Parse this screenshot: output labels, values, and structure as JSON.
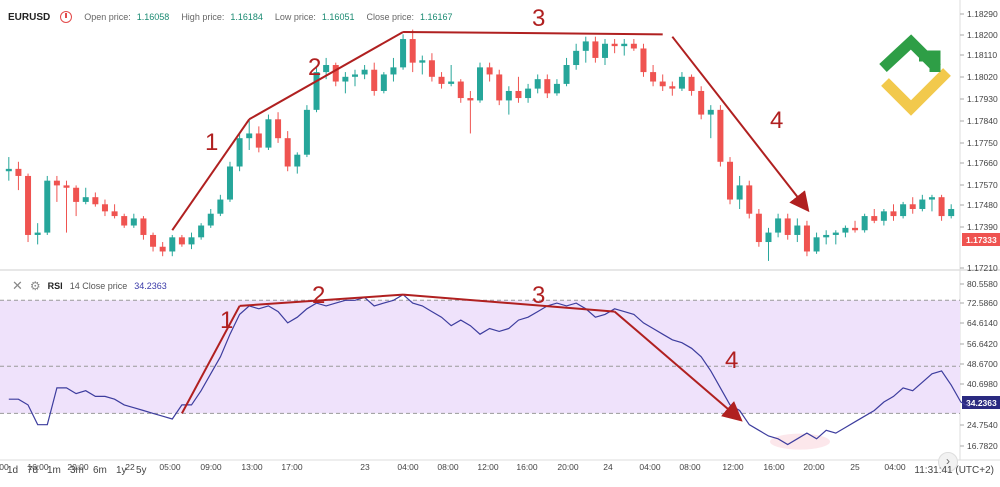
{
  "legend": {
    "symbol": "EURUSD",
    "open_label": "Open price:",
    "open_value": "1.16058",
    "high_label": "High price:",
    "high_value": "1.16184",
    "low_label": "Low price:",
    "low_value": "1.16051",
    "close_label": "Close price:",
    "close_value": "1.16167"
  },
  "rsi_legend": {
    "name": "RSI",
    "params": "14 Close price",
    "value": "34.2363",
    "close_icon": "close-icon",
    "settings_icon": "gear-icon"
  },
  "colors": {
    "up": "#26a69a",
    "down": "#ef5350",
    "rsi_line": "#3d3d9e",
    "band": "#efe2fb",
    "annotation": "#b02020",
    "price_badge": "#ef5350",
    "rsi_badge": "#2a2a80"
  },
  "price_axis": [
    "1.18290",
    "1.18200",
    "1.18110",
    "1.18020",
    "1.17930",
    "1.17840",
    "1.17750",
    "1.17660",
    "1.17570",
    "1.17480",
    "1.17390",
    "1.17210"
  ],
  "last_price_badge": "1.17333",
  "rsi_axis": [
    "80.5580",
    "72.5860",
    "64.6140",
    "56.6420",
    "48.6700",
    "40.6980",
    "24.7540",
    "16.7820"
  ],
  "rsi_badge": "34.2363",
  "time_axis": [
    "00",
    "16:00",
    "20:00",
    "22",
    "05:00",
    "09:00",
    "13:00",
    "17:00",
    "23",
    "04:00",
    "08:00",
    "12:00",
    "16:00",
    "20:00",
    "24",
    "04:00",
    "08:00",
    "12:00",
    "16:00",
    "20:00",
    "25",
    "04:00"
  ],
  "timeframes": [
    "1d",
    "7d",
    "1m",
    "3m",
    "6m",
    "1y",
    "5y"
  ],
  "clock": "11:31:41 (UTC+2)",
  "annotations_price": [
    "1",
    "2",
    "3",
    "4"
  ],
  "annotations_rsi": [
    "1",
    "2",
    "3",
    "4"
  ],
  "chart_data": [
    {
      "type": "candlestick",
      "title": "EURUSD",
      "ylim": [
        1.1721,
        1.1832
      ],
      "candles": [
        {
          "o": 1.1762,
          "h": 1.1768,
          "l": 1.1758,
          "c": 1.1763
        },
        {
          "o": 1.1763,
          "h": 1.1766,
          "l": 1.1754,
          "c": 1.176
        },
        {
          "o": 1.176,
          "h": 1.1761,
          "l": 1.1732,
          "c": 1.1735
        },
        {
          "o": 1.1735,
          "h": 1.174,
          "l": 1.1731,
          "c": 1.1736
        },
        {
          "o": 1.1736,
          "h": 1.176,
          "l": 1.1735,
          "c": 1.1758
        },
        {
          "o": 1.1758,
          "h": 1.176,
          "l": 1.1749,
          "c": 1.1756
        },
        {
          "o": 1.1756,
          "h": 1.1758,
          "l": 1.1736,
          "c": 1.1755
        },
        {
          "o": 1.1755,
          "h": 1.1756,
          "l": 1.1743,
          "c": 1.1749
        },
        {
          "o": 1.1749,
          "h": 1.1755,
          "l": 1.1748,
          "c": 1.1751
        },
        {
          "o": 1.1751,
          "h": 1.1753,
          "l": 1.1747,
          "c": 1.1748
        },
        {
          "o": 1.1748,
          "h": 1.175,
          "l": 1.1743,
          "c": 1.1745
        },
        {
          "o": 1.1745,
          "h": 1.1748,
          "l": 1.1742,
          "c": 1.1743
        },
        {
          "o": 1.1743,
          "h": 1.1744,
          "l": 1.1738,
          "c": 1.1739
        },
        {
          "o": 1.1739,
          "h": 1.1744,
          "l": 1.1738,
          "c": 1.1742
        },
        {
          "o": 1.1742,
          "h": 1.1743,
          "l": 1.1733,
          "c": 1.1735
        },
        {
          "o": 1.1735,
          "h": 1.1736,
          "l": 1.1728,
          "c": 1.173
        },
        {
          "o": 1.173,
          "h": 1.1732,
          "l": 1.1726,
          "c": 1.1728
        },
        {
          "o": 1.1728,
          "h": 1.1735,
          "l": 1.1726,
          "c": 1.1734
        },
        {
          "o": 1.1734,
          "h": 1.1735,
          "l": 1.173,
          "c": 1.1731
        },
        {
          "o": 1.1731,
          "h": 1.1736,
          "l": 1.1729,
          "c": 1.1734
        },
        {
          "o": 1.1734,
          "h": 1.174,
          "l": 1.1733,
          "c": 1.1739
        },
        {
          "o": 1.1739,
          "h": 1.1746,
          "l": 1.1738,
          "c": 1.1744
        },
        {
          "o": 1.1744,
          "h": 1.1752,
          "l": 1.1743,
          "c": 1.175
        },
        {
          "o": 1.175,
          "h": 1.1766,
          "l": 1.1749,
          "c": 1.1764
        },
        {
          "o": 1.1764,
          "h": 1.1778,
          "l": 1.1762,
          "c": 1.1776
        },
        {
          "o": 1.1776,
          "h": 1.1784,
          "l": 1.1771,
          "c": 1.1778
        },
        {
          "o": 1.1778,
          "h": 1.1781,
          "l": 1.177,
          "c": 1.1772
        },
        {
          "o": 1.1772,
          "h": 1.1786,
          "l": 1.1771,
          "c": 1.1784
        },
        {
          "o": 1.1784,
          "h": 1.1787,
          "l": 1.1774,
          "c": 1.1776
        },
        {
          "o": 1.1776,
          "h": 1.1779,
          "l": 1.1762,
          "c": 1.1764
        },
        {
          "o": 1.1764,
          "h": 1.177,
          "l": 1.1761,
          "c": 1.1769
        },
        {
          "o": 1.1769,
          "h": 1.179,
          "l": 1.1768,
          "c": 1.1788
        },
        {
          "o": 1.1788,
          "h": 1.1806,
          "l": 1.1787,
          "c": 1.1804
        },
        {
          "o": 1.1804,
          "h": 1.181,
          "l": 1.1801,
          "c": 1.1807
        },
        {
          "o": 1.1807,
          "h": 1.1808,
          "l": 1.1798,
          "c": 1.18
        },
        {
          "o": 1.18,
          "h": 1.1804,
          "l": 1.1795,
          "c": 1.1802
        },
        {
          "o": 1.1802,
          "h": 1.1805,
          "l": 1.1798,
          "c": 1.1803
        },
        {
          "o": 1.1803,
          "h": 1.1807,
          "l": 1.1801,
          "c": 1.1805
        },
        {
          "o": 1.1805,
          "h": 1.1808,
          "l": 1.1794,
          "c": 1.1796
        },
        {
          "o": 1.1796,
          "h": 1.1804,
          "l": 1.1795,
          "c": 1.1803
        },
        {
          "o": 1.1803,
          "h": 1.181,
          "l": 1.18,
          "c": 1.1806
        },
        {
          "o": 1.1806,
          "h": 1.182,
          "l": 1.1805,
          "c": 1.1818
        },
        {
          "o": 1.1818,
          "h": 1.1822,
          "l": 1.1804,
          "c": 1.1808
        },
        {
          "o": 1.1808,
          "h": 1.1811,
          "l": 1.1803,
          "c": 1.1809
        },
        {
          "o": 1.1809,
          "h": 1.1812,
          "l": 1.18,
          "c": 1.1802
        },
        {
          "o": 1.1802,
          "h": 1.1804,
          "l": 1.1797,
          "c": 1.1799
        },
        {
          "o": 1.1799,
          "h": 1.1807,
          "l": 1.1798,
          "c": 1.18
        },
        {
          "o": 1.18,
          "h": 1.1801,
          "l": 1.1791,
          "c": 1.1793
        },
        {
          "o": 1.1793,
          "h": 1.1796,
          "l": 1.1778,
          "c": 1.1792
        },
        {
          "o": 1.1792,
          "h": 1.1808,
          "l": 1.1791,
          "c": 1.1806
        },
        {
          "o": 1.1806,
          "h": 1.1808,
          "l": 1.18,
          "c": 1.1803
        },
        {
          "o": 1.1803,
          "h": 1.1805,
          "l": 1.179,
          "c": 1.1792
        },
        {
          "o": 1.1792,
          "h": 1.1798,
          "l": 1.1786,
          "c": 1.1796
        },
        {
          "o": 1.1796,
          "h": 1.1802,
          "l": 1.1791,
          "c": 1.1793
        },
        {
          "o": 1.1793,
          "h": 1.1799,
          "l": 1.1791,
          "c": 1.1797
        },
        {
          "o": 1.1797,
          "h": 1.1803,
          "l": 1.1795,
          "c": 1.1801
        },
        {
          "o": 1.1801,
          "h": 1.1803,
          "l": 1.1793,
          "c": 1.1795
        },
        {
          "o": 1.1795,
          "h": 1.1801,
          "l": 1.1794,
          "c": 1.1799
        },
        {
          "o": 1.1799,
          "h": 1.181,
          "l": 1.1798,
          "c": 1.1807
        },
        {
          "o": 1.1807,
          "h": 1.1816,
          "l": 1.1805,
          "c": 1.1813
        },
        {
          "o": 1.1813,
          "h": 1.1819,
          "l": 1.1808,
          "c": 1.1817
        },
        {
          "o": 1.1817,
          "h": 1.1819,
          "l": 1.1808,
          "c": 1.181
        },
        {
          "o": 1.181,
          "h": 1.1818,
          "l": 1.1807,
          "c": 1.1816
        },
        {
          "o": 1.1816,
          "h": 1.1818,
          "l": 1.1812,
          "c": 1.1815
        },
        {
          "o": 1.1815,
          "h": 1.1818,
          "l": 1.1811,
          "c": 1.1816
        },
        {
          "o": 1.1816,
          "h": 1.1818,
          "l": 1.1813,
          "c": 1.1814
        },
        {
          "o": 1.1814,
          "h": 1.1816,
          "l": 1.1802,
          "c": 1.1804
        },
        {
          "o": 1.1804,
          "h": 1.1807,
          "l": 1.1798,
          "c": 1.18
        },
        {
          "o": 1.18,
          "h": 1.1803,
          "l": 1.1796,
          "c": 1.1798
        },
        {
          "o": 1.1798,
          "h": 1.18,
          "l": 1.1794,
          "c": 1.1797
        },
        {
          "o": 1.1797,
          "h": 1.1804,
          "l": 1.1796,
          "c": 1.1802
        },
        {
          "o": 1.1802,
          "h": 1.1803,
          "l": 1.1794,
          "c": 1.1796
        },
        {
          "o": 1.1796,
          "h": 1.1798,
          "l": 1.1784,
          "c": 1.1786
        },
        {
          "o": 1.1786,
          "h": 1.179,
          "l": 1.1776,
          "c": 1.1788
        },
        {
          "o": 1.1788,
          "h": 1.179,
          "l": 1.1764,
          "c": 1.1766
        },
        {
          "o": 1.1766,
          "h": 1.1768,
          "l": 1.1748,
          "c": 1.175
        },
        {
          "o": 1.175,
          "h": 1.176,
          "l": 1.1746,
          "c": 1.1756
        },
        {
          "o": 1.1756,
          "h": 1.1758,
          "l": 1.1742,
          "c": 1.1744
        },
        {
          "o": 1.1744,
          "h": 1.1746,
          "l": 1.173,
          "c": 1.1732
        },
        {
          "o": 1.1732,
          "h": 1.1738,
          "l": 1.1724,
          "c": 1.1736
        },
        {
          "o": 1.1736,
          "h": 1.1744,
          "l": 1.1734,
          "c": 1.1742
        },
        {
          "o": 1.1742,
          "h": 1.1744,
          "l": 1.1733,
          "c": 1.1735
        },
        {
          "o": 1.1735,
          "h": 1.1742,
          "l": 1.1732,
          "c": 1.1739
        },
        {
          "o": 1.1739,
          "h": 1.1741,
          "l": 1.1726,
          "c": 1.1728
        },
        {
          "o": 1.1728,
          "h": 1.1736,
          "l": 1.1727,
          "c": 1.1734
        },
        {
          "o": 1.1734,
          "h": 1.1737,
          "l": 1.1731,
          "c": 1.1735
        },
        {
          "o": 1.1735,
          "h": 1.1737,
          "l": 1.1731,
          "c": 1.1736
        },
        {
          "o": 1.1736,
          "h": 1.1739,
          "l": 1.1734,
          "c": 1.1738
        },
        {
          "o": 1.1738,
          "h": 1.1741,
          "l": 1.1736,
          "c": 1.1737
        },
        {
          "o": 1.1737,
          "h": 1.1744,
          "l": 1.1736,
          "c": 1.1743
        },
        {
          "o": 1.1743,
          "h": 1.1746,
          "l": 1.174,
          "c": 1.1741
        },
        {
          "o": 1.1741,
          "h": 1.1746,
          "l": 1.1739,
          "c": 1.1745
        },
        {
          "o": 1.1745,
          "h": 1.1748,
          "l": 1.1741,
          "c": 1.1743
        },
        {
          "o": 1.1743,
          "h": 1.1749,
          "l": 1.1742,
          "c": 1.1748
        },
        {
          "o": 1.1748,
          "h": 1.1751,
          "l": 1.1744,
          "c": 1.1746
        },
        {
          "o": 1.1746,
          "h": 1.1752,
          "l": 1.1745,
          "c": 1.175
        },
        {
          "o": 1.175,
          "h": 1.1752,
          "l": 1.1745,
          "c": 1.1751
        },
        {
          "o": 1.1751,
          "h": 1.1752,
          "l": 1.1741,
          "c": 1.1743
        },
        {
          "o": 1.1743,
          "h": 1.1748,
          "l": 1.1742,
          "c": 1.1746
        }
      ],
      "trend_lines": [
        [
          [
            17,
            1.1737
          ],
          [
            25,
            1.1784
          ]
        ],
        [
          [
            25,
            1.1784
          ],
          [
            41,
            1.1821
          ]
        ],
        [
          [
            41,
            1.1821
          ],
          [
            68,
            1.182
          ]
        ],
        [
          [
            69,
            1.1819
          ],
          [
            83,
            1.1746
          ]
        ]
      ]
    },
    {
      "type": "line",
      "title": "RSI",
      "ylim": [
        15.5,
        82
      ],
      "band": [
        32,
        72
      ],
      "levels": [
        32,
        48.67,
        72
      ],
      "values": [
        37,
        37,
        35,
        28,
        28,
        41,
        41,
        39,
        40,
        38,
        38,
        37,
        35,
        34,
        33,
        32,
        31,
        30,
        35,
        35,
        40,
        46,
        52,
        60,
        67,
        70,
        69,
        70,
        68,
        64,
        66,
        69,
        71,
        70,
        71,
        72,
        72,
        73,
        70,
        71,
        72,
        74,
        71,
        70,
        68,
        66,
        63,
        65,
        63,
        60,
        62,
        61,
        62,
        65,
        66,
        68,
        70,
        71,
        70,
        71,
        69,
        66,
        67,
        69,
        68,
        67,
        64,
        62,
        60,
        58,
        57,
        55,
        52,
        47,
        41,
        35,
        33,
        28,
        26,
        24,
        23,
        21,
        23,
        25,
        23,
        26,
        25,
        27,
        29,
        31,
        33,
        36,
        38,
        41,
        40,
        43,
        46,
        47,
        42,
        36,
        34
      ],
      "trend_lines": [
        [
          [
            18,
            32
          ],
          [
            24,
            70
          ]
        ],
        [
          [
            24,
            70
          ],
          [
            41,
            74
          ]
        ],
        [
          [
            41,
            74
          ],
          [
            63,
            68
          ]
        ],
        [
          [
            63,
            68
          ],
          [
            76,
            30
          ]
        ]
      ]
    }
  ]
}
